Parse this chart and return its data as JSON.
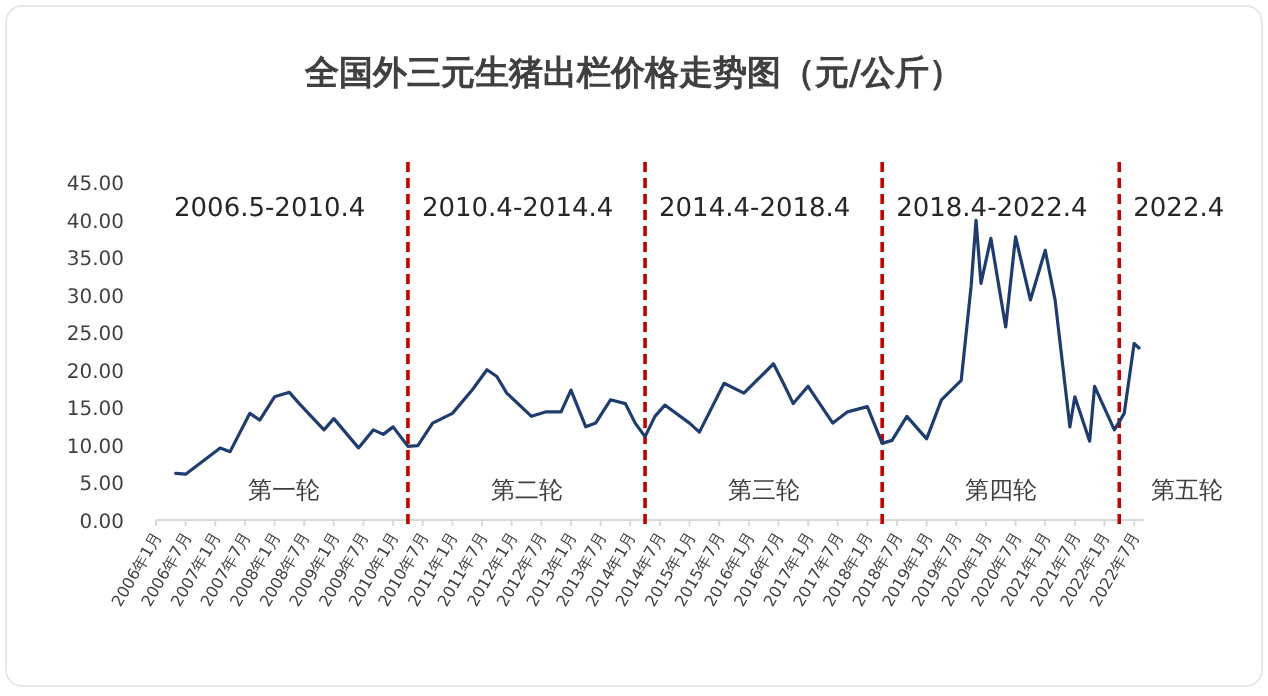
{
  "chart_data": {
    "type": "line",
    "title": "全国外三元生猪出栏价格走势图（元/公斤）",
    "x": [
      "2006-05",
      "2006-07",
      "2007-02",
      "2007-04",
      "2007-08",
      "2007-10",
      "2008-01",
      "2008-04",
      "2008-06",
      "2008-11",
      "2009-01",
      "2009-06",
      "2009-09",
      "2009-11",
      "2010-01",
      "2010-04",
      "2010-06",
      "2010-09",
      "2011-01",
      "2011-05",
      "2011-08",
      "2011-10",
      "2011-12",
      "2012-05",
      "2012-08",
      "2012-11",
      "2013-01",
      "2013-04",
      "2013-06",
      "2013-09",
      "2013-12",
      "2014-02",
      "2014-04",
      "2014-06",
      "2014-08",
      "2015-01",
      "2015-03",
      "2015-08",
      "2015-12",
      "2016-06",
      "2016-08",
      "2016-10",
      "2017-01",
      "2017-06",
      "2017-09",
      "2018-01",
      "2018-04",
      "2018-06",
      "2018-09",
      "2019-01",
      "2019-04",
      "2019-08",
      "2019-10",
      "2019-11",
      "2019-12",
      "2020-02",
      "2020-05",
      "2020-07",
      "2020-10",
      "2021-01",
      "2021-03",
      "2021-06",
      "2021-07",
      "2021-10",
      "2021-11",
      "2022-03",
      "2022-05",
      "2022-07",
      "2022-08"
    ],
    "series": [
      {
        "color": "#1f3c6e",
        "values": [
          6.2,
          6.1,
          9.6,
          9.1,
          14.2,
          13.3,
          16.4,
          17.0,
          15.5,
          12.0,
          13.5,
          9.6,
          12.0,
          11.4,
          12.4,
          9.8,
          9.9,
          12.9,
          14.2,
          17.3,
          20.0,
          19.1,
          16.9,
          13.8,
          14.4,
          14.4,
          17.3,
          12.4,
          12.9,
          16.0,
          15.5,
          12.9,
          11.1,
          13.8,
          15.3,
          12.9,
          11.7,
          18.2,
          16.9,
          20.8,
          18.2,
          15.5,
          17.8,
          12.9,
          14.4,
          15.1,
          10.2,
          10.6,
          13.8,
          10.8,
          16.0,
          18.6,
          31.1,
          39.9,
          31.5,
          37.5,
          25.7,
          37.7,
          29.3,
          35.9,
          29.3,
          12.4,
          16.4,
          10.5,
          17.8,
          12.0,
          14.2,
          23.5,
          22.9
        ]
      }
    ],
    "xlim": [
      "2006-01",
      "2022-09"
    ],
    "xticks": [
      {
        "value": "2006-01",
        "label": "2006年1月"
      },
      {
        "value": "2006-07",
        "label": "2006年7月"
      },
      {
        "value": "2007-01",
        "label": "2007年1月"
      },
      {
        "value": "2007-07",
        "label": "2007年7月"
      },
      {
        "value": "2008-01",
        "label": "2008年1月"
      },
      {
        "value": "2008-07",
        "label": "2008年7月"
      },
      {
        "value": "2009-01",
        "label": "2009年1月"
      },
      {
        "value": "2009-07",
        "label": "2009年7月"
      },
      {
        "value": "2010-01",
        "label": "2010年1月"
      },
      {
        "value": "2010-07",
        "label": "2010年7月"
      },
      {
        "value": "2011-01",
        "label": "2011年1月"
      },
      {
        "value": "2011-07",
        "label": "2011年7月"
      },
      {
        "value": "2012-01",
        "label": "2012年1月"
      },
      {
        "value": "2012-07",
        "label": "2012年7月"
      },
      {
        "value": "2013-01",
        "label": "2013年1月"
      },
      {
        "value": "2013-07",
        "label": "2013年7月"
      },
      {
        "value": "2014-01",
        "label": "2014年1月"
      },
      {
        "value": "2014-07",
        "label": "2014年7月"
      },
      {
        "value": "2015-01",
        "label": "2015年1月"
      },
      {
        "value": "2015-07",
        "label": "2015年7月"
      },
      {
        "value": "2016-01",
        "label": "2016年1月"
      },
      {
        "value": "2016-07",
        "label": "2016年7月"
      },
      {
        "value": "2017-01",
        "label": "2017年1月"
      },
      {
        "value": "2017-07",
        "label": "2017年7月"
      },
      {
        "value": "2018-01",
        "label": "2018年1月"
      },
      {
        "value": "2018-07",
        "label": "2018年7月"
      },
      {
        "value": "2019-01",
        "label": "2019年1月"
      },
      {
        "value": "2019-07",
        "label": "2019年7月"
      },
      {
        "value": "2020-01",
        "label": "2020年1月"
      },
      {
        "value": "2020-07",
        "label": "2020年7月"
      },
      {
        "value": "2021-01",
        "label": "2021年1月"
      },
      {
        "value": "2021-07",
        "label": "2021年7月"
      },
      {
        "value": "2022-01",
        "label": "2022年1月"
      },
      {
        "value": "2022-07",
        "label": "2022年7月"
      }
    ],
    "ylim": [
      0,
      45
    ],
    "yticks": [
      {
        "value": 0,
        "label": "0.00"
      },
      {
        "value": 5,
        "label": "5.00"
      },
      {
        "value": 10,
        "label": "10.00"
      },
      {
        "value": 15,
        "label": "15.00"
      },
      {
        "value": 20,
        "label": "20.00"
      },
      {
        "value": 25,
        "label": "25.00"
      },
      {
        "value": 30,
        "label": "30.00"
      },
      {
        "value": 35,
        "label": "35.00"
      },
      {
        "value": 40,
        "label": "40.00"
      },
      {
        "value": 45,
        "label": "45.00"
      }
    ],
    "grid": false,
    "ref_lines": [
      {
        "axis": "x",
        "value": "2010-04",
        "color": "#c00000",
        "line_style": "dashed"
      },
      {
        "axis": "x",
        "value": "2014-04",
        "color": "#c00000",
        "line_style": "dashed"
      },
      {
        "axis": "x",
        "value": "2018-04",
        "color": "#c00000",
        "line_style": "dashed"
      },
      {
        "axis": "x",
        "value": "2022-04",
        "color": "#c00000",
        "line_style": "dashed"
      }
    ],
    "annotations": [
      "2006.5-2010.4",
      "2010.4-2014.4",
      "2014.4-2018.4",
      "2018.4-2022.4",
      "2022.4",
      "第一轮",
      "第二轮",
      "第三轮",
      "第四轮",
      "第五轮"
    ]
  }
}
